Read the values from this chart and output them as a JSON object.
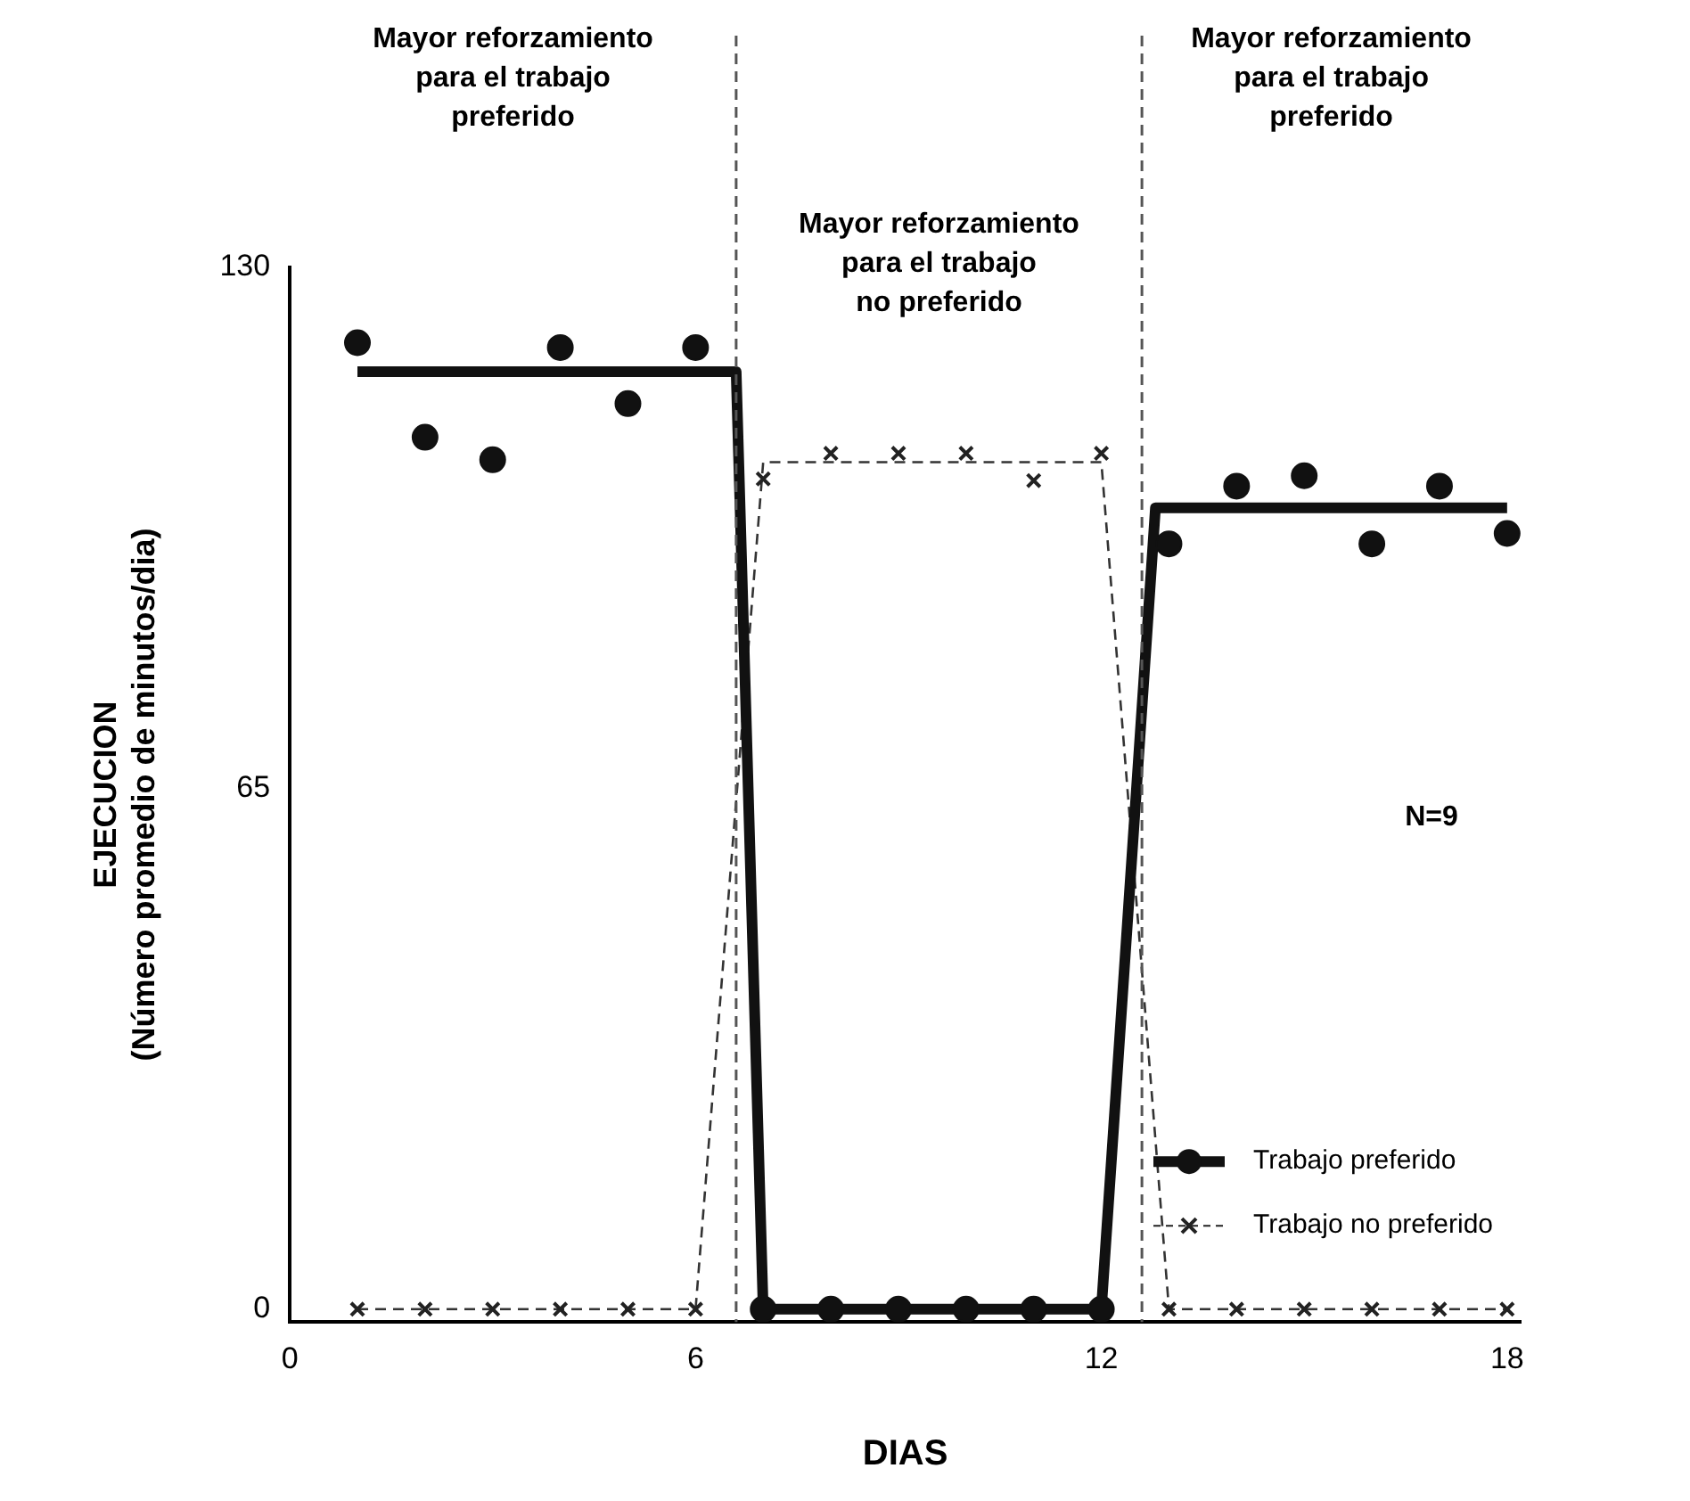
{
  "chart_data": {
    "type": "scatter",
    "xlabel": "DIAS",
    "ylabel": "EJECUCION\n(Número promedio de minutos/dia)",
    "xlim": [
      0,
      18.2
    ],
    "ylim": [
      -1.6,
      130
    ],
    "xticks": [
      0,
      6,
      12,
      18
    ],
    "yticks": [
      0,
      65,
      130
    ],
    "grid": false,
    "legend": "bottom right",
    "series": [
      {
        "name": "Trabajo preferido",
        "type": "scatter",
        "marker": "circle",
        "color": "#111111",
        "x": [
          1,
          2,
          3,
          4,
          5,
          6,
          7,
          8,
          9,
          10,
          11,
          12,
          13,
          14,
          15,
          16,
          17,
          18
        ],
        "values": [
          120.6,
          108.8,
          106,
          120,
          113,
          120,
          0,
          0,
          0,
          0,
          0,
          0,
          95.5,
          102.7,
          104,
          95.5,
          102.7,
          96.8
        ]
      },
      {
        "type": "line",
        "color": "#111111",
        "line_style": "solid",
        "x": [
          1,
          6.6,
          7,
          12,
          12.8,
          18
        ],
        "values": [
          117,
          117,
          0,
          0,
          100,
          100
        ]
      },
      {
        "name": "Trabajo no preferido",
        "type": "scatter",
        "marker": "cross",
        "color": "#222222",
        "x": [
          1,
          2,
          3,
          4,
          5,
          6,
          7,
          8,
          9,
          10,
          11,
          12,
          13,
          14,
          15,
          16,
          17,
          18
        ],
        "values": [
          0,
          0,
          0,
          0,
          0,
          0,
          103.6,
          106.8,
          106.8,
          106.8,
          103.4,
          106.8,
          0,
          0,
          0,
          0,
          0,
          0
        ]
      },
      {
        "type": "line",
        "color": "#333333",
        "line_style": "dashed",
        "x": [
          1,
          6,
          7,
          12,
          13,
          18
        ],
        "values": [
          0,
          0,
          105.7,
          105.7,
          0,
          0
        ]
      }
    ],
    "ref_lines": [
      {
        "axis": "x",
        "value": 6.6,
        "color": "#555555",
        "line_style": "dashed"
      },
      {
        "axis": "x",
        "value": 12.6,
        "color": "#555555",
        "line_style": "dashed"
      }
    ],
    "annotations": [
      "Mayor reforzamiento\npara el trabajo\npreferido",
      "Mayor reforzamiento\npara el trabajo\nno preferido",
      "Mayor reforzamiento\npara el trabajo\npreferido",
      "N=9"
    ]
  }
}
